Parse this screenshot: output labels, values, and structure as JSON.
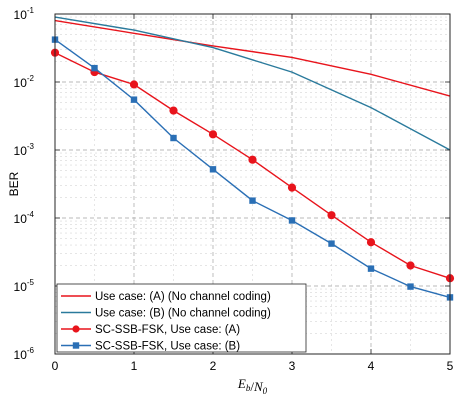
{
  "chart_data": {
    "type": "line",
    "xlabel": "E_b/N_0",
    "ylabel": "BER",
    "x_ticks": [
      "0",
      "1",
      "2",
      "3",
      "4",
      "5"
    ],
    "y_ticks": [
      "10",
      "10",
      "10",
      "10",
      "10",
      "10"
    ],
    "y_tick_exponents": [
      "-6",
      "-5",
      "-4",
      "-3",
      "-2",
      "-1"
    ],
    "xlim": [
      0,
      5
    ],
    "ylim": [
      1e-06,
      0.1
    ],
    "y_scale": "log",
    "grid": "major and minor, dashed",
    "legend_position": "bottom-left",
    "series": [
      {
        "name": "Use case: (A) (No channel coding)",
        "color": "#e8141c",
        "marker": "none",
        "x": [
          0,
          1,
          2,
          3,
          4,
          5
        ],
        "y": [
          0.08,
          0.052,
          0.034,
          0.023,
          0.013,
          0.0062
        ]
      },
      {
        "name": "Use case: (B) (No channel coding)",
        "color": "#2a7a9c",
        "marker": "none",
        "x": [
          0,
          1,
          2,
          3,
          4,
          5
        ],
        "y": [
          0.09,
          0.058,
          0.032,
          0.014,
          0.0042,
          0.001
        ]
      },
      {
        "name": "SC-SSB-FSK, Use case: (A)",
        "color": "#e8141c",
        "marker": "circle",
        "x": [
          0,
          0.5,
          1,
          1.5,
          2,
          2.5,
          3,
          3.5,
          4,
          4.5,
          5
        ],
        "y": [
          0.027,
          0.014,
          0.0092,
          0.0038,
          0.0017,
          0.00072,
          0.00028,
          0.00011,
          4.4e-05,
          2e-05,
          1.3e-05
        ]
      },
      {
        "name": "SC-SSB-FSK, Use case: (B)",
        "color": "#2a6fb5",
        "marker": "square",
        "x": [
          0,
          0.5,
          1,
          1.5,
          2,
          2.5,
          3,
          3.5,
          4,
          4.5,
          5
        ],
        "y": [
          0.042,
          0.016,
          0.0055,
          0.0015,
          0.00052,
          0.00018,
          9.2e-05,
          4.2e-05,
          1.8e-05,
          9.8e-06,
          6.8e-06
        ]
      }
    ]
  }
}
